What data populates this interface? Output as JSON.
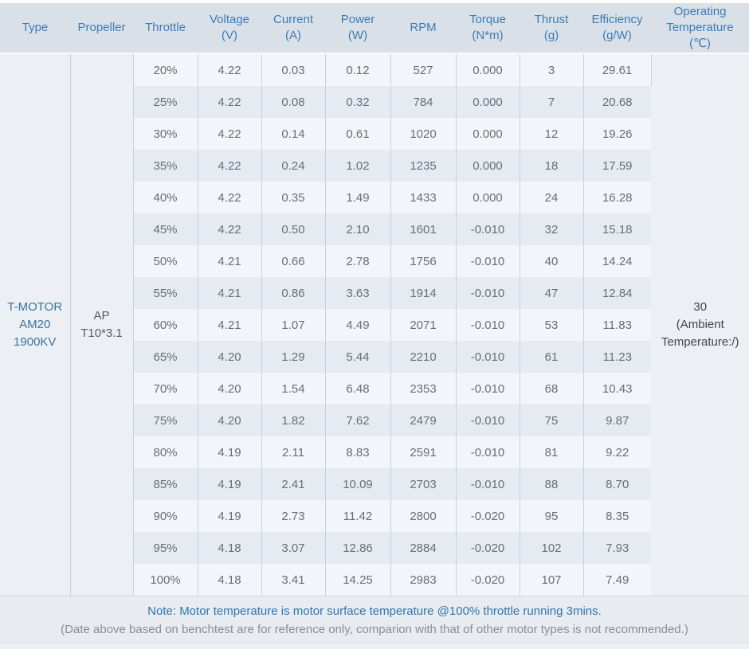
{
  "table": {
    "columns": [
      {
        "key": "type",
        "label": "Type"
      },
      {
        "key": "propeller",
        "label": "Propeller"
      },
      {
        "key": "throttle",
        "label": "Throttle"
      },
      {
        "key": "voltage",
        "label": "Voltage\n(V)"
      },
      {
        "key": "current",
        "label": "Current\n(A)"
      },
      {
        "key": "power",
        "label": "Power\n(W)"
      },
      {
        "key": "rpm",
        "label": "RPM"
      },
      {
        "key": "torque",
        "label": "Torque\n(N*m)"
      },
      {
        "key": "thrust",
        "label": "Thrust\n(g)"
      },
      {
        "key": "efficiency",
        "label": "Efficiency\n(g/W)"
      },
      {
        "key": "temp",
        "label": "Operating\nTemperature\n(℃)"
      }
    ],
    "merged": {
      "type": "T-MOTOR\nAM20\n1900KV",
      "propeller": "AP\nT10*3.1",
      "operating_temperature": "30\n(Ambient\nTemperature:/)"
    },
    "rows": [
      {
        "throttle": "20%",
        "voltage": "4.22",
        "current": "0.03",
        "power": "0.12",
        "rpm": "527",
        "torque": "0.000",
        "thrust": "3",
        "efficiency": "29.61"
      },
      {
        "throttle": "25%",
        "voltage": "4.22",
        "current": "0.08",
        "power": "0.32",
        "rpm": "784",
        "torque": "0.000",
        "thrust": "7",
        "efficiency": "20.68"
      },
      {
        "throttle": "30%",
        "voltage": "4.22",
        "current": "0.14",
        "power": "0.61",
        "rpm": "1020",
        "torque": "0.000",
        "thrust": "12",
        "efficiency": "19.26"
      },
      {
        "throttle": "35%",
        "voltage": "4.22",
        "current": "0.24",
        "power": "1.02",
        "rpm": "1235",
        "torque": "0.000",
        "thrust": "18",
        "efficiency": "17.59"
      },
      {
        "throttle": "40%",
        "voltage": "4.22",
        "current": "0.35",
        "power": "1.49",
        "rpm": "1433",
        "torque": "0.000",
        "thrust": "24",
        "efficiency": "16.28"
      },
      {
        "throttle": "45%",
        "voltage": "4.22",
        "current": "0.50",
        "power": "2.10",
        "rpm": "1601",
        "torque": "-0.010",
        "thrust": "32",
        "efficiency": "15.18"
      },
      {
        "throttle": "50%",
        "voltage": "4.21",
        "current": "0.66",
        "power": "2.78",
        "rpm": "1756",
        "torque": "-0.010",
        "thrust": "40",
        "efficiency": "14.24"
      },
      {
        "throttle": "55%",
        "voltage": "4.21",
        "current": "0.86",
        "power": "3.63",
        "rpm": "1914",
        "torque": "-0.010",
        "thrust": "47",
        "efficiency": "12.84"
      },
      {
        "throttle": "60%",
        "voltage": "4.21",
        "current": "1.07",
        "power": "4.49",
        "rpm": "2071",
        "torque": "-0.010",
        "thrust": "53",
        "efficiency": "11.83"
      },
      {
        "throttle": "65%",
        "voltage": "4.20",
        "current": "1.29",
        "power": "5.44",
        "rpm": "2210",
        "torque": "-0.010",
        "thrust": "61",
        "efficiency": "11.23"
      },
      {
        "throttle": "70%",
        "voltage": "4.20",
        "current": "1.54",
        "power": "6.48",
        "rpm": "2353",
        "torque": "-0.010",
        "thrust": "68",
        "efficiency": "10.43"
      },
      {
        "throttle": "75%",
        "voltage": "4.20",
        "current": "1.82",
        "power": "7.62",
        "rpm": "2479",
        "torque": "-0.010",
        "thrust": "75",
        "efficiency": "9.87"
      },
      {
        "throttle": "80%",
        "voltage": "4.19",
        "current": "2.11",
        "power": "8.83",
        "rpm": "2591",
        "torque": "-0.010",
        "thrust": "81",
        "efficiency": "9.22"
      },
      {
        "throttle": "85%",
        "voltage": "4.19",
        "current": "2.41",
        "power": "10.09",
        "rpm": "2703",
        "torque": "-0.010",
        "thrust": "88",
        "efficiency": "8.70"
      },
      {
        "throttle": "90%",
        "voltage": "4.19",
        "current": "2.73",
        "power": "11.42",
        "rpm": "2800",
        "torque": "-0.020",
        "thrust": "95",
        "efficiency": "8.35"
      },
      {
        "throttle": "95%",
        "voltage": "4.18",
        "current": "3.07",
        "power": "12.86",
        "rpm": "2884",
        "torque": "-0.020",
        "thrust": "102",
        "efficiency": "7.93"
      },
      {
        "throttle": "100%",
        "voltage": "4.18",
        "current": "3.41",
        "power": "14.25",
        "rpm": "2983",
        "torque": "-0.020",
        "thrust": "107",
        "efficiency": "7.49"
      }
    ],
    "notes": {
      "line1": "Note: Motor temperature is motor surface temperature @100% throttle running 3mins.",
      "line2": "(Date above based on benchtest are for reference only, comparion with that of other motor types is not recommended.)"
    }
  },
  "colors": {
    "header_bg": "#d9e0e8",
    "header_text": "#3e7cb4",
    "row_odd_bg": "#f2f5f9",
    "row_even_bg": "#e5ebf1",
    "merged_bg": "#eceff4",
    "border": "#c9d2da",
    "data_text": "#686f76",
    "type_text": "#39749f",
    "note_blue": "#2f74ad",
    "note_gray": "#878e96"
  }
}
